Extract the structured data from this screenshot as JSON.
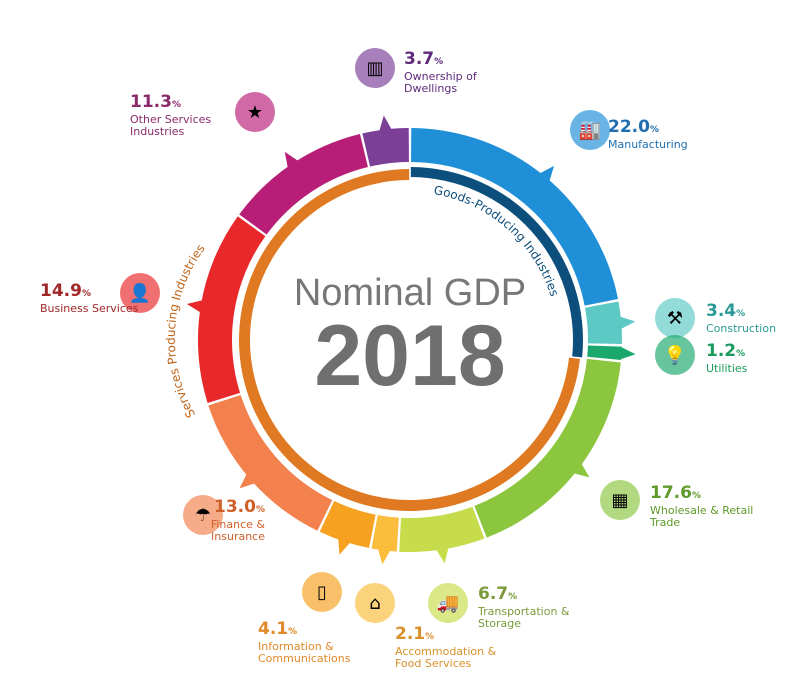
{
  "chart_data": {
    "type": "pie",
    "title": "Nominal GDP",
    "subtitle": "2018",
    "unit": "%",
    "groups": [
      {
        "name": "Goods-Producing Industries",
        "color": "#0d4f7c"
      },
      {
        "name": "Services Producing Industries",
        "color": "#e07a22"
      }
    ],
    "slices": [
      {
        "name": "Manufacturing",
        "value": 22.0,
        "color": "#1f8fd8",
        "group": 0,
        "icon": "factory-icon",
        "text": "#1f6fb0"
      },
      {
        "name": "Construction",
        "value": 3.4,
        "color": "#5cc9c4",
        "group": 0,
        "icon": "construction-icon",
        "text": "#2a9a95"
      },
      {
        "name": "Utilities",
        "value": 1.2,
        "color": "#1aa86c",
        "group": 0,
        "icon": "lightbulb-icon",
        "text": "#1a9a5c"
      },
      {
        "name": "Wholesale & Retail Trade",
        "value": 17.6,
        "color": "#8cc63f",
        "group": 1,
        "icon": "store-icon",
        "text": "#5e9a2a"
      },
      {
        "name": "Transportation & Storage",
        "value": 6.7,
        "color": "#c7dc4b",
        "group": 1,
        "icon": "truck-icon",
        "text": "#7a9a3a"
      },
      {
        "name": "Accommodation & Food Services",
        "value": 2.1,
        "color": "#fbbd3c",
        "group": 1,
        "icon": "house-icon",
        "text": "#d9902a"
      },
      {
        "name": "Information & Communications",
        "value": 4.1,
        "color": "#f6a11f",
        "group": 1,
        "icon": "phone-icon",
        "text": "#e08a2a"
      },
      {
        "name": "Finance & Insurance",
        "value": 13.0,
        "color": "#f2814e",
        "group": 1,
        "icon": "umbrella-icon",
        "text": "#d0602a"
      },
      {
        "name": "Business Services",
        "value": 14.9,
        "color": "#e8282b",
        "group": 1,
        "icon": "person-icon",
        "text": "#a02828"
      },
      {
        "name": "Other Services Industries",
        "value": 11.3,
        "color": "#b81e78",
        "group": 1,
        "icon": "star-icon",
        "text": "#8a2a6a"
      },
      {
        "name": "Ownership of Dwellings",
        "value": 3.7,
        "color": "#7b3f98",
        "group": 1,
        "icon": "building-icon",
        "text": "#5e2a7a"
      }
    ]
  }
}
